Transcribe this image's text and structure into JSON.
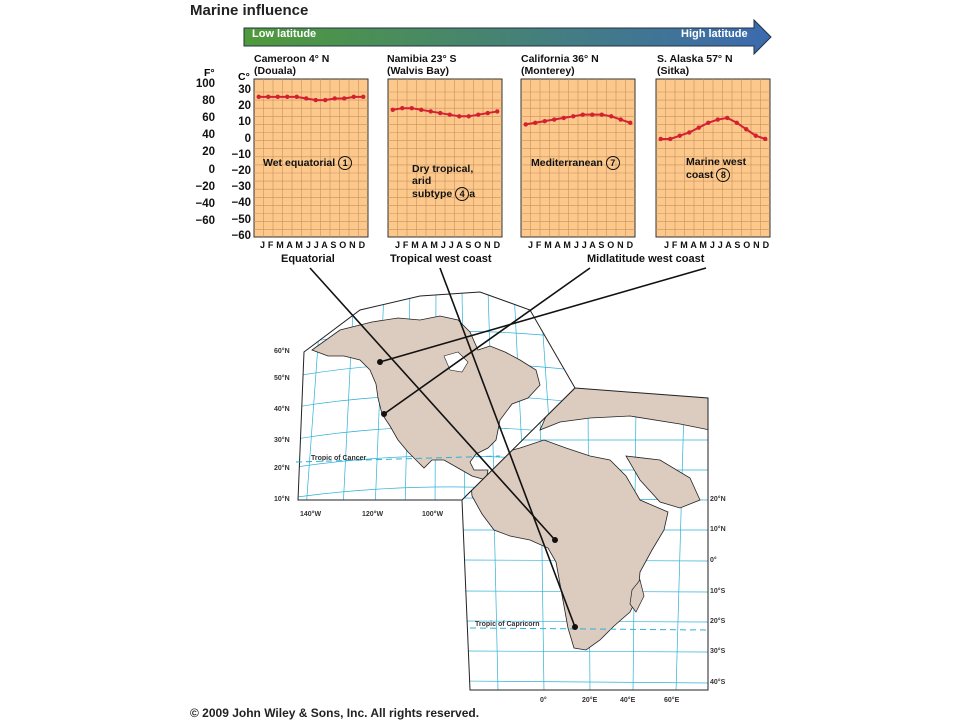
{
  "title": "Marine influence",
  "arrow": {
    "left_label": "Low latitude",
    "right_label": "High latitude",
    "color_start": "#4f9a3a",
    "color_end": "#3c6ab0"
  },
  "axis": {
    "f_unit": "F°",
    "c_unit": "C°",
    "f_ticks": [
      "100",
      "80",
      "60",
      "40",
      "20",
      "0",
      "−20",
      "−40",
      "−60"
    ],
    "c_ticks": [
      "30",
      "20",
      "10",
      "0",
      "−10",
      "−20",
      "−30",
      "−40",
      "−50",
      "−60"
    ]
  },
  "months_label": "J F M A M J J A S O N D",
  "line_color": "#d42030",
  "chart_bg": "#fcc88c",
  "chart_data": {
    "type": "line",
    "x": [
      "J",
      "F",
      "M",
      "A",
      "M",
      "J",
      "J",
      "A",
      "S",
      "O",
      "N",
      "D"
    ],
    "ylim": [
      -60,
      30
    ],
    "ylabel": "C°",
    "series": [
      {
        "name": "Cameroon 4° N (Douala)",
        "values": [
          27,
          27,
          27,
          27,
          27,
          26,
          25,
          25,
          26,
          26,
          27,
          27
        ]
      },
      {
        "name": "Namibia 23° S (Walvis Bay)",
        "values": [
          19,
          20,
          20,
          19,
          18,
          17,
          16,
          15,
          15,
          16,
          17,
          18
        ]
      },
      {
        "name": "California 36° N (Monterey)",
        "values": [
          10,
          11,
          12,
          13,
          14,
          15,
          16,
          16,
          16,
          15,
          13,
          11
        ]
      },
      {
        "name": "S. Alaska 57° N (Sitka)",
        "values": [
          1,
          1,
          3,
          5,
          8,
          11,
          13,
          14,
          11,
          7,
          3,
          1
        ]
      }
    ]
  },
  "panels": [
    {
      "title1": "Cameroon 4° N",
      "title2": "(Douala)",
      "climate": "Wet equatorial",
      "num": "1",
      "num_suffix": ""
    },
    {
      "title1": "Namibia 23° S",
      "title2": "(Walvis Bay)",
      "climate": "Dry tropical, arid subtype",
      "climate_lines": [
        "Dry tropical,",
        "arid",
        "subtype"
      ],
      "num": "4",
      "num_suffix": "a"
    },
    {
      "title1": "California 36° N",
      "title2": "(Monterey)",
      "climate": "Mediterranean",
      "num": "7",
      "num_suffix": ""
    },
    {
      "title1": "S. Alaska 57° N",
      "title2": "(Sitka)",
      "climate": "Marine west coast",
      "climate_lines": [
        "Marine west",
        "coast"
      ],
      "num": "8",
      "num_suffix": ""
    }
  ],
  "regions": [
    "Equatorial",
    "Tropical west coast",
    "Midlatitude west coast"
  ],
  "map": {
    "na_lat": [
      "60°N",
      "50°N",
      "40°N",
      "30°N",
      "20°N",
      "10°N"
    ],
    "na_lon": [
      "140°W",
      "120°W",
      "100°W"
    ],
    "af_lat": [
      "20°N",
      "10°N",
      "0°",
      "10°S",
      "20°S",
      "30°S",
      "40°S"
    ],
    "af_lon": [
      "0°",
      "20°E",
      "40°E",
      "60°E"
    ],
    "tropic_cancer": "Tropic of Cancer",
    "tropic_capricorn": "Tropic of Capricorn",
    "land_color": "#dccbbf",
    "grid_color": "#2fb0d8"
  },
  "copyright": "© 2009 John Wiley & Sons, Inc. All rights reserved."
}
